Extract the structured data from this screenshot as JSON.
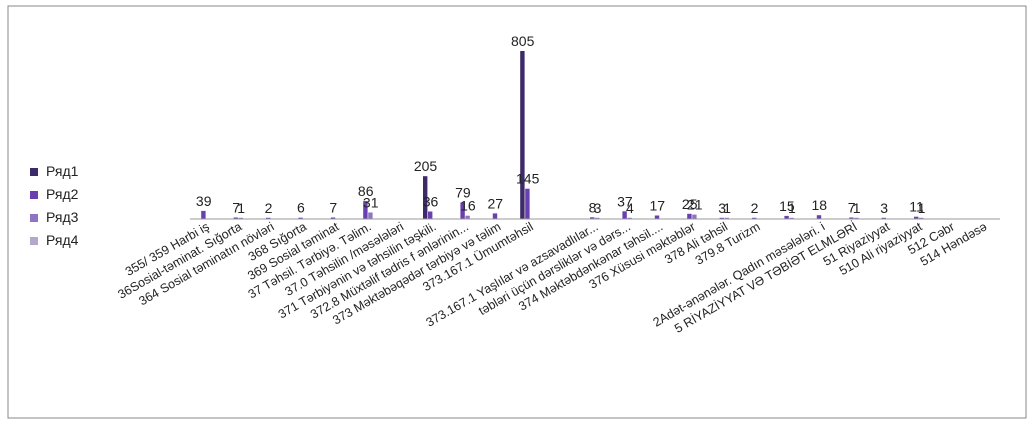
{
  "chart_data": {
    "type": "bar",
    "title": "",
    "xlabel": "",
    "ylabel": "",
    "grid": false,
    "legend_position": "left",
    "categories": [
      "355/ 359 Harbi iş",
      "36Sosial-təminat. Sığorta",
      "364 Sosial təminatın növləri",
      "368 Sığorta",
      "369 Sosial təminat",
      "37 Təhsil. Tərbiyə. Təlim.",
      "37.0 Təhsilin /məsələləri",
      "371 Tərbiyənin və təhsilin təşkili.",
      "372.8 Müxtəlif tədris f ənlərinin...",
      "373 Məktəbəqədər tərbiyə və təlim",
      "373.167.1 Ümumtəhsil",
      "",
      "373.167.1 Yaşlılar və azsavadlılar...",
      "təbləri üçün dərsliklər və dərs...",
      "374 Məktəbdənkənar təhsil....",
      "376 Xüsusi məktəblər",
      "378 Ali təhsil",
      "379.8 Turizm",
      "",
      "2Adət-ənənələr. Qadın məsələləri. i",
      "5 RİYAZİYYAT VƏ TƏBİƏT ELMLƏRİ",
      "51 Riyaziyyat",
      "510 Ali riyaziyyat",
      "512 Cəbr",
      "514 Həndəsə"
    ],
    "series": [
      {
        "name": "Ряд1",
        "color": "#3d2a6b",
        "values": [
          null,
          null,
          null,
          null,
          null,
          null,
          null,
          205,
          null,
          null,
          805,
          null,
          null,
          null,
          null,
          null,
          null,
          null,
          null,
          null,
          null,
          null,
          null,
          null,
          null
        ]
      },
      {
        "name": "Ряд2",
        "color": "#6a3fb0",
        "values": [
          39,
          7,
          2,
          6,
          7,
          86,
          null,
          36,
          79,
          27,
          145,
          null,
          8,
          37,
          17,
          25,
          3,
          2,
          15,
          18,
          7,
          3,
          11,
          null,
          null
        ]
      },
      {
        "name": "Ряд3",
        "color": "#8f74c4",
        "values": [
          null,
          1,
          null,
          null,
          null,
          31,
          null,
          null,
          16,
          null,
          null,
          null,
          3,
          4,
          null,
          21,
          1,
          null,
          1,
          null,
          1,
          null,
          1,
          null,
          null
        ]
      },
      {
        "name": "Ряд4",
        "color": "#b3a8cc",
        "values": [
          null,
          null,
          null,
          null,
          null,
          null,
          null,
          null,
          null,
          null,
          null,
          null,
          null,
          null,
          null,
          null,
          null,
          null,
          null,
          null,
          null,
          null,
          null,
          null,
          null
        ]
      }
    ],
    "ylim": [
      0,
      805
    ]
  }
}
